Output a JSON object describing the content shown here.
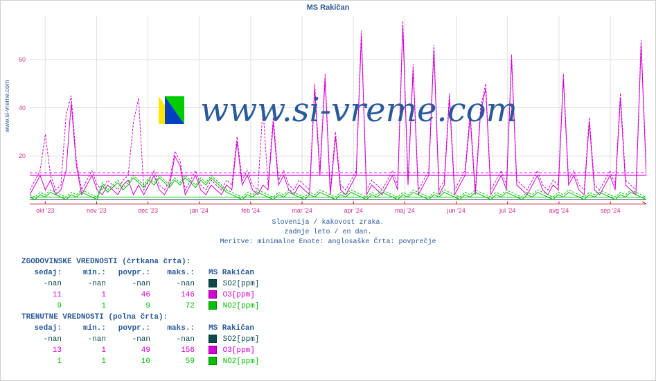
{
  "site": "www.si-vreme.com",
  "title": "MS Rakičan",
  "watermark_text": "www.si-vreme.com",
  "caption_lines": [
    "Slovenija / kakovost zraka.",
    "zadnje leto / en dan.",
    "Meritve: minimalne  Enote: anglosaške  Črta: povprečje"
  ],
  "chart": {
    "type": "line",
    "background_color": "#ffffff",
    "grid_color": "#e0e0e0",
    "axis_color": "#d03090",
    "ylim": [
      0,
      78
    ],
    "yticks": [
      20,
      40,
      60
    ],
    "x_categories": [
      "okt '23",
      "nov '23",
      "dec '23",
      "jan '24",
      "feb '24",
      "mar '24",
      "apr '24",
      "maj '24",
      "jun '24",
      "jul '24",
      "avg '24",
      "sep '24"
    ],
    "series": [
      {
        "name": "SO2[ppm]",
        "color": "#0a4a4a",
        "dash_avg": 3,
        "solid_now": 2,
        "dashed_avg_values": [
          2,
          2,
          2,
          2,
          2,
          2,
          2,
          2,
          2,
          2,
          2,
          2,
          2,
          2,
          2,
          2,
          2,
          2,
          2,
          2,
          2,
          2,
          2,
          2,
          2,
          2,
          2,
          2,
          2,
          2,
          2,
          2,
          2,
          2,
          2,
          2,
          2,
          2,
          2,
          2,
          2,
          2,
          2,
          2,
          2,
          2,
          2,
          2,
          2,
          2,
          2,
          2,
          2,
          2,
          2,
          2,
          2,
          2,
          2,
          2,
          2,
          2,
          2,
          2,
          2,
          2,
          2,
          2,
          2,
          2,
          2,
          2,
          2,
          2,
          2,
          2,
          2,
          2,
          2,
          2,
          2,
          2,
          2,
          2,
          2,
          2,
          2,
          2,
          2,
          2,
          2,
          2,
          2,
          2,
          2,
          2,
          2,
          2,
          2,
          2,
          2,
          2,
          2,
          2,
          2,
          2,
          2,
          2,
          2,
          2,
          2,
          2,
          2,
          2,
          2,
          2,
          2,
          2,
          2,
          2
        ],
        "solid_now_values": [
          2,
          2,
          2,
          2,
          2,
          2,
          2,
          2,
          2,
          2,
          2,
          2,
          2,
          2,
          2,
          2,
          2,
          2,
          2,
          2,
          2,
          2,
          2,
          2,
          2,
          2,
          2,
          2,
          2,
          2,
          2,
          2,
          2,
          2,
          2,
          2,
          2,
          2,
          2,
          2,
          2,
          2,
          2,
          2,
          2,
          2,
          2,
          2,
          2,
          2,
          2,
          2,
          2,
          2,
          2,
          2,
          2,
          2,
          2,
          2,
          2,
          2,
          2,
          2,
          2,
          2,
          2,
          2,
          2,
          2,
          2,
          2,
          2,
          2,
          2,
          2,
          2,
          2,
          2,
          2,
          2,
          2,
          2,
          2,
          2,
          2,
          2,
          2,
          2,
          2,
          2,
          2,
          2,
          2,
          2,
          2,
          2,
          2,
          2,
          2,
          2,
          2,
          2,
          2,
          2,
          2,
          2,
          2,
          2,
          2,
          2,
          2,
          2,
          2,
          2,
          2,
          2,
          2,
          2,
          2
        ]
      },
      {
        "name": "O3[ppm]",
        "color": "#d500d5",
        "dash_avg": 13,
        "solid_now": 12,
        "dashed_avg_values": [
          6,
          10,
          14,
          29,
          12,
          6,
          8,
          37,
          45,
          18,
          6,
          10,
          14,
          8,
          6,
          10,
          8,
          6,
          10,
          12,
          34,
          44,
          6,
          10,
          14,
          8,
          6,
          10,
          22,
          18,
          6,
          10,
          14,
          8,
          6,
          10,
          8,
          6,
          10,
          8,
          28,
          10,
          14,
          8,
          6,
          40,
          8,
          36,
          10,
          14,
          8,
          6,
          10,
          8,
          6,
          50,
          14,
          54,
          6,
          30,
          8,
          6,
          10,
          14,
          72,
          6,
          10,
          8,
          6,
          10,
          14,
          8,
          76,
          10,
          58,
          6,
          10,
          14,
          66,
          6,
          10,
          46,
          6,
          10,
          14,
          38,
          6,
          40,
          50,
          6,
          10,
          14,
          8,
          62,
          10,
          8,
          6,
          10,
          14,
          8,
          6,
          10,
          8,
          54,
          10,
          14,
          8,
          6,
          36,
          8,
          6,
          10,
          14,
          8,
          46,
          10,
          8,
          6,
          68,
          14
        ],
        "solid_now_values": [
          4,
          8,
          12,
          6,
          10,
          4,
          6,
          14,
          42,
          16,
          4,
          8,
          12,
          6,
          4,
          8,
          6,
          4,
          8,
          10,
          4,
          8,
          4,
          8,
          12,
          6,
          4,
          8,
          20,
          16,
          4,
          8,
          12,
          6,
          4,
          8,
          6,
          4,
          8,
          6,
          26,
          8,
          12,
          6,
          4,
          8,
          6,
          34,
          8,
          12,
          6,
          4,
          8,
          6,
          4,
          48,
          12,
          52,
          4,
          28,
          6,
          4,
          8,
          12,
          70,
          4,
          8,
          6,
          4,
          8,
          12,
          6,
          74,
          8,
          56,
          4,
          8,
          12,
          64,
          4,
          8,
          44,
          4,
          8,
          12,
          36,
          4,
          38,
          48,
          4,
          8,
          12,
          6,
          60,
          8,
          6,
          4,
          8,
          12,
          6,
          4,
          8,
          6,
          52,
          8,
          12,
          6,
          4,
          34,
          6,
          4,
          8,
          12,
          6,
          44,
          8,
          6,
          4,
          66,
          12
        ]
      },
      {
        "name": "NO2[ppm]",
        "color": "#00c000",
        "dash_avg": 3,
        "solid_now": 3,
        "dashed_avg_values": [
          4,
          3,
          5,
          4,
          6,
          5,
          4,
          3,
          5,
          4,
          6,
          5,
          4,
          3,
          9,
          6,
          8,
          10,
          7,
          9,
          12,
          10,
          8,
          11,
          9,
          12,
          10,
          8,
          11,
          9,
          12,
          10,
          8,
          11,
          9,
          12,
          10,
          8,
          6,
          5,
          4,
          3,
          5,
          4,
          6,
          5,
          4,
          3,
          5,
          4,
          6,
          5,
          4,
          3,
          5,
          4,
          6,
          5,
          4,
          3,
          5,
          4,
          6,
          5,
          4,
          3,
          5,
          4,
          6,
          5,
          4,
          3,
          5,
          4,
          6,
          5,
          4,
          3,
          5,
          4,
          6,
          5,
          4,
          3,
          5,
          4,
          6,
          5,
          4,
          3,
          5,
          4,
          6,
          5,
          4,
          3,
          5,
          4,
          6,
          5,
          4,
          3,
          5,
          4,
          6,
          5,
          4,
          3,
          5,
          4,
          6,
          5,
          4,
          3,
          5,
          4,
          6,
          5,
          4,
          3
        ],
        "solid_now_values": [
          3,
          2,
          4,
          3,
          5,
          4,
          3,
          2,
          4,
          3,
          5,
          4,
          3,
          2,
          8,
          5,
          7,
          9,
          6,
          8,
          11,
          9,
          7,
          10,
          8,
          11,
          9,
          7,
          10,
          8,
          11,
          9,
          7,
          10,
          8,
          11,
          9,
          7,
          5,
          4,
          3,
          2,
          4,
          3,
          5,
          4,
          3,
          2,
          4,
          3,
          5,
          4,
          3,
          2,
          4,
          3,
          5,
          4,
          3,
          2,
          4,
          3,
          5,
          4,
          3,
          2,
          4,
          3,
          5,
          4,
          3,
          2,
          4,
          3,
          5,
          4,
          3,
          2,
          4,
          3,
          5,
          4,
          3,
          2,
          4,
          3,
          5,
          4,
          3,
          2,
          4,
          3,
          5,
          4,
          3,
          2,
          4,
          3,
          5,
          4,
          3,
          2,
          4,
          3,
          5,
          4,
          3,
          2,
          4,
          3,
          5,
          4,
          3,
          2,
          4,
          3,
          5,
          4,
          3,
          2
        ]
      }
    ]
  },
  "tables": {
    "hist_header": "ZGODOVINSKE VREDNOSTI (črtkana črta):",
    "curr_header": "TRENUTNE VREDNOSTI (polna črta):",
    "columns": [
      "sedaj:",
      "min.:",
      "povpr.:",
      "maks.:"
    ],
    "station_label": "MS Rakičan",
    "historical": [
      {
        "vals": [
          "-nan",
          "-nan",
          "-nan",
          "-nan"
        ],
        "color": "#0a4a4a",
        "swatch": "#0a4a4a",
        "label": "SO2[ppm]"
      },
      {
        "vals": [
          "11",
          "1",
          "46",
          "146"
        ],
        "color": "#d500d5",
        "swatch": "#d500d5",
        "label": "O3[ppm]"
      },
      {
        "vals": [
          "9",
          "1",
          "9",
          "72"
        ],
        "color": "#00c000",
        "swatch": "#00c000",
        "label": "NO2[ppm]"
      }
    ],
    "current": [
      {
        "vals": [
          "-nan",
          "-nan",
          "-nan",
          "-nan"
        ],
        "color": "#0a4a4a",
        "swatch": "#0a4a4a",
        "label": "SO2[ppm]"
      },
      {
        "vals": [
          "13",
          "1",
          "49",
          "156"
        ],
        "color": "#d500d5",
        "swatch": "#d500d5",
        "label": "O3[ppm]"
      },
      {
        "vals": [
          "1",
          "1",
          "10",
          "59"
        ],
        "color": "#00c000",
        "swatch": "#00c000",
        "label": "NO2[ppm]"
      }
    ]
  }
}
